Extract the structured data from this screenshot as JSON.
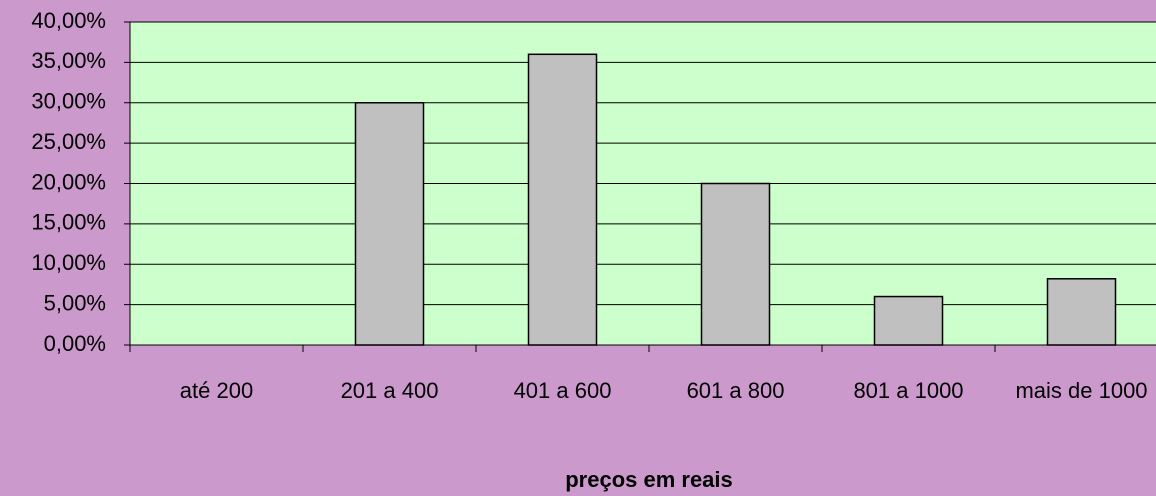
{
  "chart_data": {
    "type": "bar",
    "x_label": "preços em reais",
    "categories": [
      "até 200",
      "201 a 400",
      "401 a 600",
      "601 a 800",
      "801 a 1000",
      "mais de 1000"
    ],
    "values": [
      0,
      30,
      36,
      20,
      6,
      8.2
    ],
    "color": "#c0c0c0",
    "ylim": [
      0,
      40
    ],
    "yticks": [
      {
        "value": 0,
        "label": "0,00%"
      },
      {
        "value": 5,
        "label": "5,00%"
      },
      {
        "value": 10,
        "label": "10,00%"
      },
      {
        "value": 15,
        "label": "15,00%"
      },
      {
        "value": 20,
        "label": "20,00%"
      },
      {
        "value": 25,
        "label": "25,00%"
      },
      {
        "value": 30,
        "label": "30,00%"
      },
      {
        "value": 35,
        "label": "35,00%"
      },
      {
        "value": 40,
        "label": "40,00%"
      }
    ],
    "grid": true
  }
}
